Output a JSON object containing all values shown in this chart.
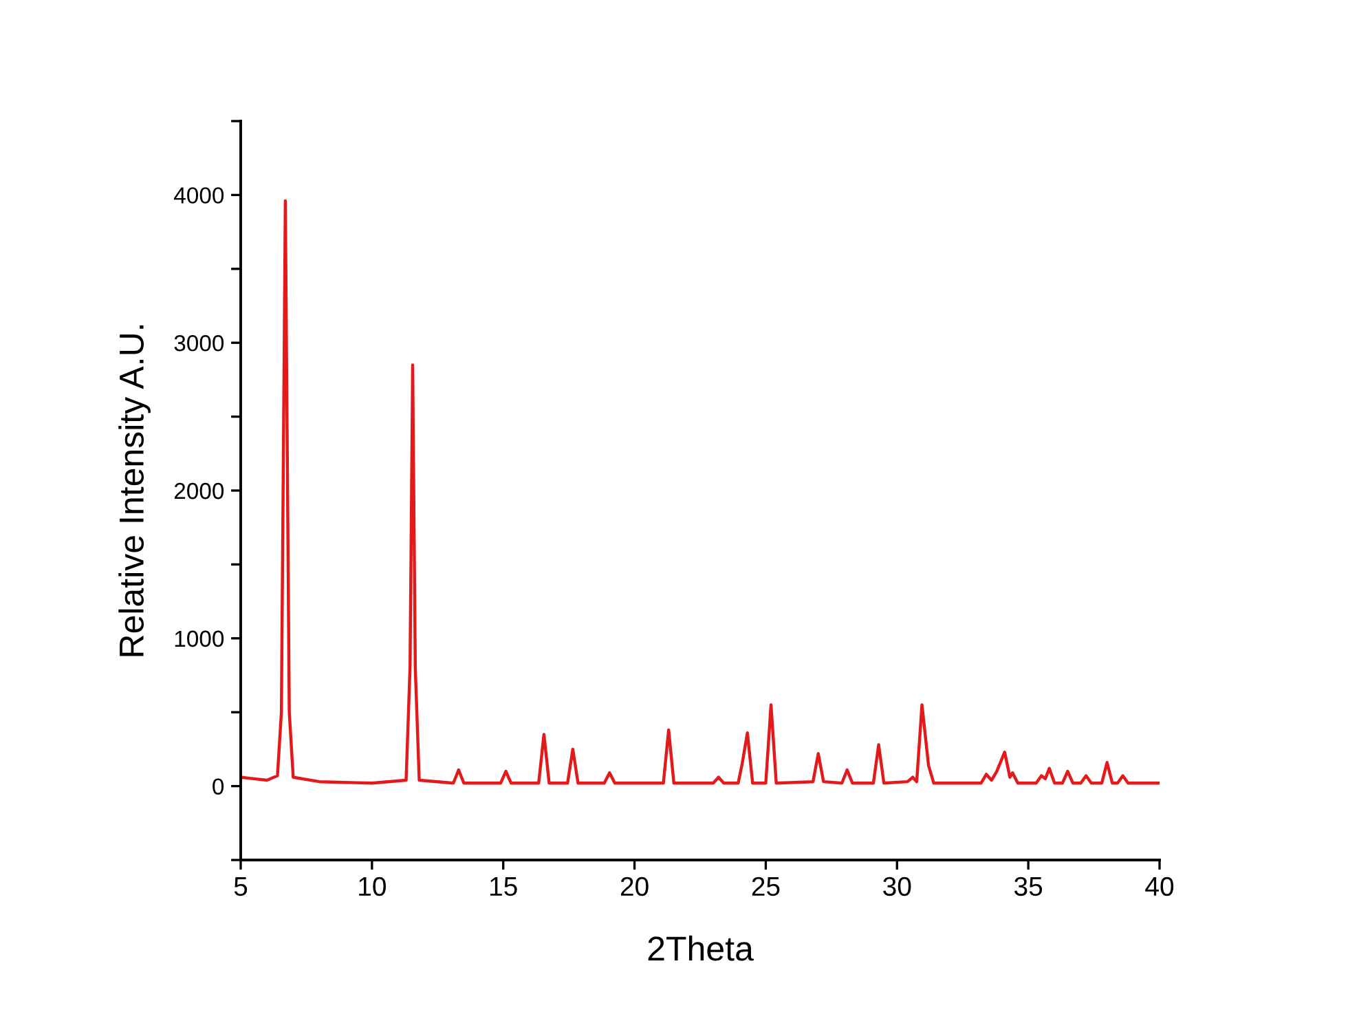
{
  "chart_data": {
    "type": "line",
    "xlabel": "2Theta",
    "ylabel": "Relative Intensity A.U.",
    "xlim": [
      5,
      40
    ],
    "xticks": [
      5,
      10,
      15,
      20,
      25,
      30,
      35,
      40
    ],
    "ylim": [
      -500,
      4500
    ],
    "yticks": [
      {
        "value": -500,
        "label": null
      },
      0,
      {
        "value": 500,
        "label": null
      },
      1000,
      {
        "value": 1500,
        "label": null
      },
      2000,
      {
        "value": 2500,
        "label": null
      },
      3000,
      {
        "value": 3500,
        "label": null
      },
      4000,
      {
        "value": 4500,
        "label": null
      }
    ],
    "grid": false,
    "marker": "none",
    "line_style": "solid",
    "series": [
      {
        "color": "#e31a1c",
        "x": [
          5,
          5.5,
          6.0,
          6.4,
          6.55,
          6.7,
          6.85,
          7.0,
          8,
          10,
          11.3,
          11.45,
          11.55,
          11.65,
          11.8,
          13.1,
          13.3,
          13.5,
          14.9,
          15.1,
          15.3,
          16.35,
          16.55,
          16.75,
          17.45,
          17.65,
          17.85,
          18.85,
          19.05,
          19.25,
          21.1,
          21.3,
          21.5,
          23.0,
          23.2,
          23.4,
          23.95,
          24.1,
          24.3,
          24.5,
          25.0,
          25.2,
          25.4,
          26.8,
          27.0,
          27.2,
          27.9,
          28.1,
          28.3,
          29.1,
          29.3,
          29.5,
          30.4,
          30.6,
          30.75,
          30.95,
          31.2,
          31.4,
          33.2,
          33.4,
          33.6,
          33.8,
          34.1,
          34.3,
          34.4,
          34.6,
          35.3,
          35.5,
          35.65,
          35.8,
          36.0,
          36.3,
          36.5,
          36.7,
          37.0,
          37.2,
          37.4,
          37.8,
          38.0,
          38.2,
          38.4,
          38.6,
          38.8,
          40
        ],
        "values": [
          60,
          50,
          40,
          70,
          500,
          3960,
          500,
          60,
          30,
          20,
          40,
          800,
          2850,
          800,
          40,
          20,
          110,
          20,
          20,
          100,
          20,
          20,
          350,
          20,
          20,
          250,
          20,
          20,
          90,
          20,
          20,
          380,
          20,
          20,
          60,
          20,
          20,
          150,
          360,
          20,
          20,
          550,
          20,
          30,
          220,
          30,
          20,
          110,
          20,
          20,
          280,
          20,
          30,
          60,
          30,
          550,
          140,
          20,
          20,
          80,
          40,
          100,
          230,
          60,
          90,
          20,
          20,
          70,
          50,
          120,
          20,
          20,
          100,
          20,
          20,
          70,
          20,
          20,
          160,
          20,
          20,
          70,
          20,
          20
        ]
      }
    ]
  }
}
